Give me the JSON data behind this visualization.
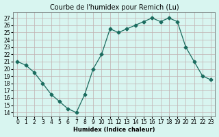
{
  "x": [
    0,
    1,
    2,
    3,
    4,
    5,
    6,
    7,
    8,
    9,
    10,
    11,
    12,
    13,
    14,
    15,
    16,
    17,
    18,
    19,
    20,
    21,
    22,
    23
  ],
  "y": [
    21,
    20.5,
    19.5,
    18,
    16.5,
    15.5,
    14.5,
    14,
    16.5,
    20,
    22,
    25.5,
    25,
    25.5,
    26,
    26.5,
    27,
    26.5,
    27,
    26.5,
    23,
    21,
    19,
    18.5
  ],
  "title": "Courbe de l'humidex pour Remich (Lu)",
  "xlabel": "Humidex (Indice chaleur)",
  "xlim": [
    -0.5,
    23.5
  ],
  "ylim": [
    13.5,
    27.8
  ],
  "yticks": [
    14,
    15,
    16,
    17,
    18,
    19,
    20,
    21,
    22,
    23,
    24,
    25,
    26,
    27
  ],
  "xticks": [
    0,
    1,
    2,
    3,
    4,
    5,
    6,
    7,
    8,
    9,
    10,
    11,
    12,
    13,
    14,
    15,
    16,
    17,
    18,
    19,
    20,
    21,
    22,
    23
  ],
  "line_color": "#1a6b5e",
  "marker": "D",
  "marker_size": 2.5,
  "bg_color": "#d8f5f0",
  "grid_color": "#c0b0b0",
  "title_fontsize": 7,
  "axis_fontsize": 6,
  "tick_fontsize": 5.5
}
